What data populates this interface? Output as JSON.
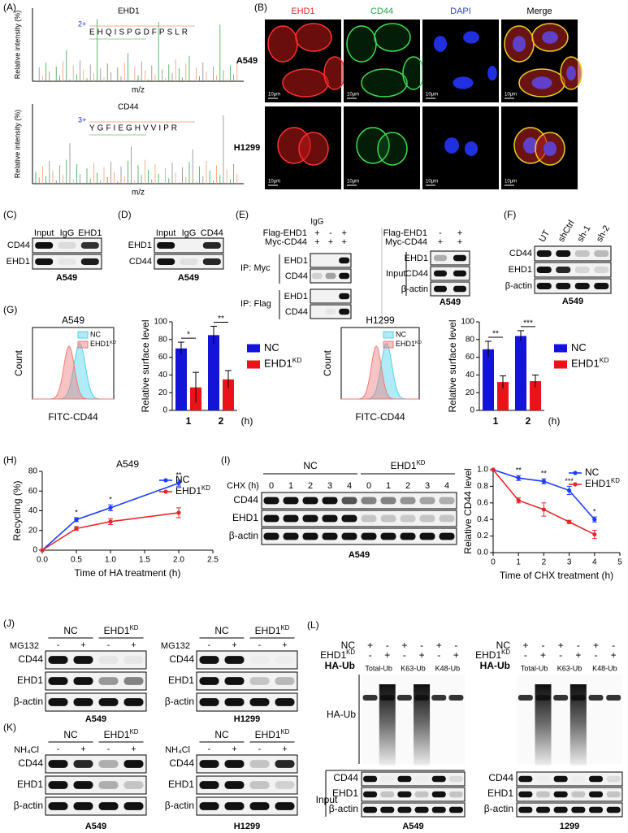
{
  "panel_a": {
    "label": "(A)",
    "spectra": [
      {
        "title": "EHD1",
        "charge": "2+",
        "sequence": "EHQISPGDFPSLR",
        "ylabel": "Relative intensity (%)",
        "xlabel": "m/z"
      },
      {
        "title": "CD44",
        "charge": "3+",
        "sequence": "YGFIEGHVVIPR",
        "ylabel": "Relative intensity (%)",
        "xlabel": "m/z"
      }
    ]
  },
  "panel_b": {
    "label": "(B)",
    "columns": [
      "EHD1",
      "CD44",
      "DAPI",
      "Merge"
    ],
    "column_colors": [
      "#e8202a",
      "#22a845",
      "#2b3fd6",
      "#000000"
    ],
    "rows": [
      "A549",
      "H1299"
    ],
    "scale_bar": "10μm"
  },
  "panel_c": {
    "label": "(C)",
    "lanes": [
      "Input",
      "IgG",
      "EHD1"
    ],
    "rows": [
      "CD44",
      "EHD1"
    ],
    "cell": "A549"
  },
  "panel_d": {
    "label": "(D)",
    "lanes": [
      "Input",
      "IgG",
      "CD44"
    ],
    "rows": [
      "EHD1",
      "CD44"
    ],
    "cell": "A549"
  },
  "panel_e": {
    "label": "(E)",
    "ip_blot": {
      "igg": "IgG",
      "conditions": [
        {
          "name": "Flag-EHD1",
          "signs": [
            "+",
            "-",
            "+"
          ]
        },
        {
          "name": "Myc-CD44",
          "signs": [
            "+",
            "+",
            "+"
          ]
        }
      ],
      "groups": [
        {
          "name": "IP: Myc",
          "rows": [
            "EHD1",
            "CD44"
          ]
        },
        {
          "name": "IP: Flag",
          "rows": [
            "EHD1",
            "CD44"
          ]
        }
      ]
    },
    "input_blot": {
      "conditions": [
        {
          "name": "Flag-EHD1",
          "signs": [
            "-",
            "+"
          ]
        },
        {
          "name": "Myc-CD44",
          "signs": [
            "+",
            "+"
          ]
        }
      ],
      "group": "Input",
      "rows": [
        "EHD1",
        "CD44",
        "β-actin"
      ]
    },
    "cell": "A549"
  },
  "panel_f": {
    "label": "(F)",
    "lanes": [
      "UT",
      "shCtrl",
      "sh-1",
      "sh-2"
    ],
    "rows": [
      "CD44",
      "EHD1",
      "β-actin"
    ],
    "cell": "A549"
  },
  "panel_g": {
    "label": "(G)",
    "cells": [
      {
        "histogram": {
          "type": "histogram-overlay",
          "title": "A549",
          "ylabel": "Count",
          "xlabel": "FITC-CD44",
          "series": [
            {
              "name": "NC",
              "color": "#4fd2ec"
            },
            {
              "name": {
                "text": "EHD1",
                "sup": "KD"
              },
              "color": "#f07a7a"
            }
          ]
        },
        "bar": {
          "type": "bar",
          "ylabel": "Relative surface level",
          "categories": [
            "1",
            "2"
          ],
          "x_unit": "(h)",
          "ylim": [
            0,
            100
          ],
          "yticks": [
            0,
            20,
            40,
            60,
            80,
            100
          ],
          "series": [
            {
              "name": "NC",
              "color": "#1414d8",
              "values": [
                70,
                85
              ],
              "errors": [
                7,
                10
              ]
            },
            {
              "name": {
                "text": "EHD1",
                "sup": "KD"
              },
              "color": "#e8141a",
              "values": [
                26,
                35
              ],
              "errors": [
                17,
                10
              ]
            }
          ],
          "significance": [
            "*",
            "**"
          ]
        }
      },
      {
        "histogram": {
          "type": "histogram-overlay",
          "title": "H1299",
          "ylabel": "Count",
          "xlabel": "FITC-CD44",
          "series": [
            {
              "name": "NC",
              "color": "#4fd2ec"
            },
            {
              "name": {
                "text": "EHD1",
                "sup": "KD"
              },
              "color": "#f07a7a"
            }
          ]
        },
        "bar": {
          "type": "bar",
          "ylabel": "Relative surface level",
          "categories": [
            "1",
            "2"
          ],
          "x_unit": "(h)",
          "ylim": [
            0,
            100
          ],
          "yticks": [
            0,
            20,
            40,
            60,
            80,
            100
          ],
          "series": [
            {
              "name": "NC",
              "color": "#1414d8",
              "values": [
                69,
                84
              ],
              "errors": [
                9,
                6
              ]
            },
            {
              "name": {
                "text": "EHD1",
                "sup": "KD"
              },
              "color": "#e8141a",
              "values": [
                32,
                33
              ],
              "errors": [
                7,
                7
              ]
            }
          ],
          "significance": [
            "**",
            "***"
          ]
        }
      }
    ]
  },
  "panel_h": {
    "label": "(H)",
    "chart": {
      "type": "line",
      "title": "A549",
      "ylabel": "Recycling (%)",
      "xlabel": "Time of HA treatment (h)",
      "x": [
        0,
        0.5,
        1,
        2
      ],
      "xlim": [
        0,
        2.5
      ],
      "xticks": [
        {
          "value": 0,
          "label": "0.0"
        },
        0.5,
        {
          "value": 1,
          "label": "1.0"
        },
        1.5,
        {
          "value": 2,
          "label": "2.0"
        },
        2.5
      ],
      "ylim": [
        0,
        80
      ],
      "yticks": [
        0,
        20,
        40,
        60,
        80
      ],
      "series": [
        {
          "name": "NC",
          "color": "#1a3cff",
          "values": [
            0,
            31,
            43,
            68
          ],
          "errors": [
            0,
            2,
            3,
            3
          ]
        },
        {
          "name": {
            "text": "EHD1",
            "sup": "KD"
          },
          "color": "#e8262a",
          "values": [
            0,
            22,
            29,
            38
          ],
          "errors": [
            0,
            2,
            3,
            5
          ]
        }
      ],
      "significance": [
        null,
        "*",
        "*",
        "**"
      ]
    }
  },
  "panel_i": {
    "label": "(I)",
    "blot": {
      "groups": [
        "NC",
        {
          "text": "EHD1",
          "sup": "KD"
        }
      ],
      "condition": "CHX (h)",
      "lanes": [
        "0",
        "1",
        "2",
        "3",
        "4",
        "0",
        "1",
        "2",
        "3",
        "4"
      ],
      "rows": [
        "CD44",
        "EHD1",
        "β-actin"
      ],
      "cell": "A549"
    },
    "chart": {
      "type": "line",
      "ylabel": "Relative CD44 level",
      "xlabel": "Time of CHX treatment (h)",
      "x": [
        0,
        1,
        2,
        3,
        4
      ],
      "xlim": [
        0,
        5
      ],
      "xticks": [
        0,
        1,
        2,
        3,
        4,
        5
      ],
      "ylim": [
        0,
        1
      ],
      "yticks": [
        {
          "value": 0,
          "label": "0.0"
        },
        0.2,
        0.4,
        0.6,
        0.8,
        {
          "value": 1,
          "label": "1.0"
        }
      ],
      "series": [
        {
          "name": "NC",
          "color": "#1a3cff",
          "values": [
            1,
            0.9,
            0.86,
            0.75,
            0.4
          ],
          "errors": [
            0,
            0.03,
            0.03,
            0.05,
            0.03
          ]
        },
        {
          "name": {
            "text": "EHD1",
            "sup": "KD"
          },
          "color": "#e8262a",
          "values": [
            1,
            0.63,
            0.52,
            0.37,
            0.22
          ],
          "errors": [
            0,
            0.03,
            0.08,
            0.02,
            0.05
          ]
        }
      ],
      "significance": [
        null,
        "**",
        "**",
        "***",
        "*"
      ]
    }
  },
  "panel_j": {
    "label": "(J)",
    "blots": [
      {
        "condition": "MG132",
        "signs": [
          "-",
          "+",
          "-",
          "+"
        ],
        "groups": [
          "NC",
          {
            "text": "EHD1",
            "sup": "KD"
          }
        ],
        "rows": [
          "CD44",
          "EHD1",
          "β-actin"
        ],
        "cell": "A549"
      },
      {
        "condition": "MG132",
        "signs": [
          "-",
          "+",
          "-",
          "+"
        ],
        "groups": [
          "NC",
          {
            "text": "EHD1",
            "sup": "KD"
          }
        ],
        "rows": [
          "CD44",
          "EHD1",
          "β-actin"
        ],
        "cell": "H1299"
      }
    ]
  },
  "panel_k": {
    "label": "(K)",
    "blots": [
      {
        "condition": "NH₄Cl",
        "signs": [
          "-",
          "+",
          "-",
          "+"
        ],
        "groups": [
          "NC",
          {
            "text": "EHD1",
            "sup": "KD"
          }
        ],
        "rows": [
          "CD44",
          "EHD1",
          "β-actin"
        ],
        "cell": "A549"
      },
      {
        "condition": "NH₄Cl",
        "signs": [
          "-",
          "+",
          "-",
          "+"
        ],
        "groups": [
          "NC",
          {
            "text": "EHD1",
            "sup": "KD"
          }
        ],
        "rows": [
          "CD44",
          "EHD1",
          "β-actin"
        ],
        "cell": "H1299"
      }
    ]
  },
  "panel_l": {
    "label": "(L)",
    "blots": [
      {
        "conditions": [
          {
            "name": "NC",
            "signs": [
              "+",
              "-",
              "+",
              "-",
              "+",
              "-"
            ]
          },
          {
            "name": {
              "text": "EHD1",
              "sup": "KD"
            },
            "signs": [
              "-",
              "+",
              "-",
              "+",
              "-",
              "+"
            ]
          }
        ],
        "header": "HA-Ub",
        "lane_groups": [
          "Total-Ub",
          "K63-Ub",
          "K48-Ub"
        ],
        "blot_label": "HA-Ub",
        "input_label": "Input",
        "rows": [
          "CD44",
          "EHD1",
          "β-actin"
        ],
        "cell": "A549"
      },
      {
        "conditions": [
          {
            "name": "NC",
            "signs": [
              "+",
              "-",
              "+",
              "-",
              "+",
              "-"
            ]
          },
          {
            "name": {
              "text": "EHD1",
              "sup": "KD"
            },
            "signs": [
              "-",
              "+",
              "-",
              "+",
              "-",
              "+"
            ]
          }
        ],
        "header": "HA-Ub",
        "lane_groups": [
          "Total-Ub",
          "K63-Ub",
          "K48-Ub"
        ],
        "rows": [
          "CD44",
          "EHD1",
          "β-actin"
        ],
        "cell": "1299"
      }
    ]
  }
}
